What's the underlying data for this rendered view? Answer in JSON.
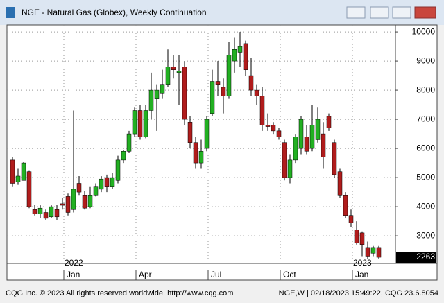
{
  "chart_data": {
    "type": "candlestick",
    "title": "NGE - Natural Gas (Globex), Weekly Continuation",
    "categories": [
      null,
      null,
      null,
      null,
      null,
      null,
      null,
      null,
      null,
      null,
      "Jan",
      null,
      null,
      null,
      null,
      null,
      null,
      null,
      null,
      null,
      null,
      null,
      null,
      "Apr",
      null,
      null,
      null,
      null,
      null,
      null,
      null,
      null,
      null,
      null,
      null,
      null,
      "Jul",
      null,
      null,
      null,
      null,
      null,
      null,
      null,
      null,
      null,
      null,
      null,
      null,
      "Oct",
      null,
      null,
      null,
      null,
      null,
      null,
      null,
      null,
      null,
      null,
      null,
      null,
      "Jan",
      null,
      null,
      null,
      null
    ],
    "year_labels": [
      "2022",
      "2023"
    ],
    "open": [
      5600,
      4850,
      4900,
      5200,
      3900,
      3750,
      3800,
      3650,
      3900,
      4100,
      4350,
      3900,
      4800,
      4400,
      4000,
      4400,
      4600,
      5000,
      4700,
      4900,
      5600,
      5900,
      6500,
      7300,
      6400,
      7300,
      7700,
      7900,
      8200,
      8800,
      8600,
      8800,
      6900,
      6200,
      5500,
      6000,
      7200,
      8300,
      8100,
      7800,
      9000,
      9300,
      9600,
      8500,
      8000,
      7800,
      6800,
      6800,
      6600,
      6200,
      5000,
      5600,
      6000,
      6400,
      6000,
      6300,
      6500,
      7100,
      6200,
      5200,
      4400,
      3700,
      3200,
      3100,
      2600,
      2400,
      2600
    ],
    "high": [
      5700,
      5300,
      5550,
      5250,
      4050,
      4050,
      3900,
      4050,
      4050,
      4300,
      4450,
      7300,
      5050,
      4550,
      4700,
      4800,
      5050,
      5100,
      5150,
      5750,
      5950,
      6600,
      7400,
      7500,
      7500,
      8600,
      8200,
      8700,
      9400,
      9200,
      9200,
      9000,
      7100,
      6400,
      6300,
      7100,
      8700,
      9000,
      8400,
      9650,
      9800,
      10000,
      9700,
      9100,
      8200,
      8100,
      7200,
      6900,
      6700,
      6300,
      5800,
      6500,
      7100,
      6800,
      7500,
      7400,
      6900,
      7200,
      6300,
      5300,
      4500,
      3900,
      3500,
      3150,
      2800,
      2650,
      2650
    ],
    "low": [
      4700,
      4750,
      4900,
      3950,
      3700,
      3600,
      3550,
      3600,
      3550,
      3900,
      3700,
      3800,
      4400,
      3900,
      3950,
      4350,
      4500,
      4500,
      4600,
      4800,
      5500,
      5850,
      6400,
      6300,
      6350,
      7000,
      6600,
      7700,
      8100,
      8400,
      7500,
      6800,
      6000,
      5300,
      5300,
      5900,
      7100,
      7800,
      7200,
      7700,
      8600,
      8800,
      8500,
      7800,
      7500,
      6600,
      6600,
      6500,
      6300,
      4900,
      4800,
      5500,
      5800,
      5800,
      5900,
      6200,
      5300,
      6600,
      5000,
      4300,
      3600,
      3300,
      2700,
      2300,
      2200,
      2300,
      2200
    ],
    "close": [
      4800,
      5050,
      5500,
      4000,
      3750,
      3950,
      3600,
      4000,
      3650,
      4050,
      3800,
      4600,
      4500,
      3950,
      4400,
      4700,
      4950,
      4700,
      5000,
      5600,
      5900,
      6500,
      7300,
      6400,
      7300,
      8000,
      8000,
      8200,
      8800,
      8700,
      8650,
      7000,
      6200,
      5500,
      5900,
      7000,
      8300,
      8200,
      7800,
      9200,
      9400,
      9500,
      8700,
      8000,
      7800,
      6800,
      6750,
      6600,
      6400,
      5000,
      5600,
      6400,
      7000,
      5900,
      6800,
      7000,
      5700,
      6700,
      5100,
      4400,
      3700,
      3450,
      2750,
      2700,
      2300,
      2600,
      2263
    ],
    "up_color": "#22b022",
    "down_color": "#b01c1c",
    "ylim": [
      2050,
      10240
    ],
    "yticks": [
      {
        "value": 3000,
        "label": "3000"
      },
      {
        "value": 4000,
        "label": "4000"
      },
      {
        "value": 5000,
        "label": "5000"
      },
      {
        "value": 6000,
        "label": "6000"
      },
      {
        "value": 7000,
        "label": "7000"
      },
      {
        "value": 8000,
        "label": "8000"
      },
      {
        "value": 9000,
        "label": "9000"
      },
      {
        "value": 10000,
        "label": "10000"
      }
    ],
    "grid": true
  },
  "footer": {
    "left": "CQG Inc. © 2023 All rights reserved worldwide. http://www.cqg.com",
    "right": "NGE,W | 02/18/2023 15:49:22, CQG 23.6.8054"
  }
}
